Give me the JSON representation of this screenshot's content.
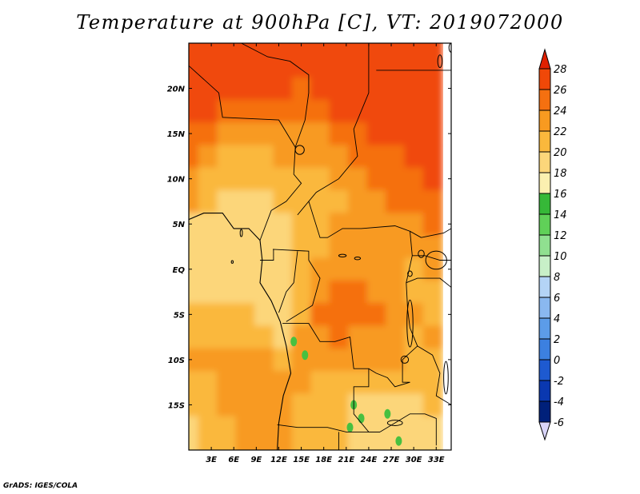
{
  "title": "Temperature at 900hPa [C], VT: 2019072000",
  "credit": "GrADS: IGES/COLA",
  "chart_data": {
    "type": "heatmap",
    "title": "Temperature at 900hPa [C], VT: 2019072000",
    "variable": "Temperature at 900hPa",
    "units": "C",
    "valid_time": "2019072000",
    "x_axis": {
      "range_deg_east": [
        0,
        35
      ],
      "ticks": [
        3,
        6,
        9,
        12,
        15,
        18,
        21,
        24,
        27,
        30,
        33
      ],
      "tick_labels": [
        "3E",
        "6E",
        "9E",
        "12E",
        "15E",
        "18E",
        "21E",
        "24E",
        "27E",
        "30E",
        "33E"
      ]
    },
    "y_axis": {
      "range_deg_north": [
        -20,
        25
      ],
      "ticks": [
        20,
        15,
        10,
        5,
        0,
        -5,
        -10,
        -15
      ],
      "tick_labels": [
        "20N",
        "15N",
        "10N",
        "5N",
        "EQ",
        "5S",
        "10S",
        "15S"
      ]
    },
    "colorbar": {
      "levels": [
        28,
        26,
        24,
        22,
        20,
        18,
        16,
        14,
        12,
        10,
        8,
        6,
        4,
        2,
        0,
        -2,
        -4,
        -6
      ],
      "labels": [
        "28",
        "26",
        "24",
        "22",
        "20",
        "18",
        "16",
        "14",
        "12",
        "10",
        "8",
        "6",
        "4",
        "2",
        "0",
        "-2",
        "-4",
        "-6"
      ],
      "colors_top_to_bottom": [
        "#e02000",
        "#f04808",
        "#f57010",
        "#f89a20",
        "#fab83c",
        "#fcd67a",
        "#fbf0b0",
        "#36b838",
        "#60d058",
        "#90e090",
        "#c8f0c8",
        "#b4d4f6",
        "#8ab8f0",
        "#5c9ce8",
        "#3c80e0",
        "#1e5ad0",
        "#0a38b0",
        "#00207a",
        "#d8d4f8"
      ]
    },
    "fields": {
      "grid_step_deg": 2.5,
      "lat_rows_north_to_south": [
        25,
        22.5,
        20,
        17.5,
        15,
        12.5,
        10,
        7.5,
        5,
        2.5,
        0,
        -2.5,
        -5,
        -7.5,
        -10,
        -12.5,
        -15,
        -17.5,
        -20
      ],
      "lon_cols_west_to_east": [
        0,
        2.5,
        5,
        7.5,
        10,
        12.5,
        15,
        17.5,
        20,
        22.5,
        25,
        27.5,
        30,
        32.5
      ],
      "temperature_c": [
        [
          27,
          27,
          27,
          27,
          27,
          27,
          26,
          27,
          27,
          27,
          27,
          27,
          27,
          27
        ],
        [
          27,
          27,
          27,
          27,
          27,
          27,
          26,
          26,
          27,
          27,
          27,
          27,
          27,
          27
        ],
        [
          27,
          27,
          27,
          27,
          26,
          26,
          25,
          26,
          27,
          27,
          27,
          27,
          27,
          27
        ],
        [
          27,
          26,
          25,
          25,
          24,
          25,
          24,
          25,
          26,
          26,
          27,
          27,
          27,
          27
        ],
        [
          25,
          24,
          23,
          23,
          22,
          23,
          23,
          23,
          24,
          25,
          26,
          26,
          26,
          26
        ],
        [
          24,
          22,
          21,
          21,
          21,
          22,
          22,
          22,
          23,
          24,
          25,
          25,
          26,
          26
        ],
        [
          23,
          21,
          20,
          20,
          20,
          21,
          21,
          21,
          22,
          23,
          24,
          24,
          25,
          26
        ],
        [
          22,
          21,
          19,
          19,
          19,
          20,
          20,
          20,
          21,
          22,
          23,
          24,
          25,
          25
        ],
        [
          19,
          19,
          19,
          18,
          19,
          19,
          20,
          21,
          22,
          22,
          23,
          23,
          23,
          24
        ],
        [
          19,
          19,
          19,
          19,
          18,
          19,
          20,
          21,
          22,
          22,
          22,
          22,
          22,
          23
        ],
        [
          18,
          19,
          19,
          19,
          18,
          19,
          21,
          22,
          22,
          22,
          22,
          22,
          21,
          22
        ],
        [
          19,
          18,
          18,
          18,
          19,
          19,
          21,
          23,
          24,
          24,
          23,
          22,
          21,
          21
        ],
        [
          20,
          20,
          20,
          20,
          19,
          18,
          21,
          24,
          25,
          25,
          24,
          23,
          22,
          21
        ],
        [
          21,
          21,
          21,
          21,
          21,
          19,
          22,
          23,
          24,
          23,
          22,
          22,
          21,
          22
        ],
        [
          22,
          22,
          22,
          22,
          22,
          21,
          22,
          22,
          22,
          22,
          22,
          22,
          21,
          21
        ],
        [
          21,
          21,
          22,
          23,
          23,
          22,
          22,
          21,
          21,
          21,
          20,
          20,
          20,
          21
        ],
        [
          20,
          21,
          22,
          23,
          23,
          22,
          21,
          21,
          20,
          19,
          19,
          18,
          19,
          20
        ],
        [
          19,
          20,
          21,
          22,
          23,
          22,
          21,
          21,
          20,
          18,
          18,
          18,
          18,
          19
        ],
        [
          19,
          20,
          21,
          22,
          22,
          22,
          21,
          21,
          20,
          19,
          19,
          19,
          19,
          19
        ]
      ],
      "green_patches_below_16c": [
        {
          "lon": 14.0,
          "lat": -8.0
        },
        {
          "lon": 15.5,
          "lat": -9.5
        },
        {
          "lon": 22.0,
          "lat": -15.0
        },
        {
          "lon": 23.0,
          "lat": -16.5
        },
        {
          "lon": 26.5,
          "lat": -16.0
        },
        {
          "lon": 21.5,
          "lat": -17.5
        },
        {
          "lon": 28.0,
          "lat": -19.0
        }
      ]
    },
    "boundaries": {
      "coastline": [
        [
          0,
          5.5
        ],
        [
          2.0,
          6.2
        ],
        [
          4.5,
          6.2
        ],
        [
          6.0,
          4.5
        ],
        [
          8.0,
          4.5
        ],
        [
          9.5,
          3.2
        ],
        [
          9.8,
          1.0
        ],
        [
          9.5,
          -1.5
        ],
        [
          11.0,
          -3.5
        ],
        [
          12.2,
          -5.8
        ],
        [
          13.0,
          -8.5
        ],
        [
          13.6,
          -11.5
        ],
        [
          12.6,
          -14.0
        ],
        [
          12.0,
          -17.0
        ],
        [
          11.8,
          -20.0
        ]
      ],
      "borders": [
        [
          [
            7.0,
            25.0
          ],
          [
            10.5,
            23.5
          ],
          [
            13.5,
            23.0
          ],
          [
            16.0,
            21.5
          ],
          [
            16.0,
            19.5
          ],
          [
            15.5,
            16.5
          ],
          [
            14.2,
            13.5
          ]
        ],
        [
          [
            0,
            22.5
          ],
          [
            4.0,
            19.5
          ],
          [
            4.5,
            16.8
          ],
          [
            12.0,
            16.5
          ],
          [
            14.2,
            13.5
          ]
        ],
        [
          [
            24.0,
            25.0
          ],
          [
            24.0,
            19.5
          ],
          [
            22.0,
            15.5
          ],
          [
            22.5,
            12.5
          ],
          [
            20.0,
            10.0
          ],
          [
            17.0,
            8.5
          ],
          [
            16.0,
            7.5
          ],
          [
            14.5,
            6.0
          ]
        ],
        [
          [
            25.0,
            22.0
          ],
          [
            35.0,
            22.0
          ]
        ],
        [
          [
            14.2,
            13.5
          ],
          [
            14.0,
            10.5
          ],
          [
            15.0,
            9.5
          ],
          [
            13.0,
            7.5
          ],
          [
            11.0,
            6.5
          ],
          [
            9.5,
            3.2
          ]
        ],
        [
          [
            16.0,
            7.5
          ],
          [
            17.5,
            3.5
          ],
          [
            18.5,
            3.5
          ],
          [
            20.5,
            4.5
          ],
          [
            23.0,
            4.5
          ],
          [
            27.5,
            4.8
          ],
          [
            29.5,
            4.2
          ],
          [
            31.0,
            3.5
          ]
        ],
        [
          [
            11.2,
            2.2
          ],
          [
            16.0,
            2.0
          ],
          [
            16.0,
            1.0
          ]
        ],
        [
          [
            11.3,
            2.2
          ],
          [
            11.3,
            1.0
          ],
          [
            9.5,
            1.0
          ]
        ],
        [
          [
            14.5,
            2.0
          ],
          [
            14.0,
            -1.5
          ],
          [
            13.0,
            -2.5
          ],
          [
            12.0,
            -4.8
          ]
        ],
        [
          [
            16.0,
            1.0
          ],
          [
            17.5,
            -1.0
          ],
          [
            16.5,
            -4.0
          ],
          [
            13.0,
            -5.8
          ]
        ],
        [
          [
            12.5,
            -6.0
          ],
          [
            16.0,
            -6.0
          ],
          [
            17.5,
            -8.0
          ],
          [
            19.5,
            -8.0
          ],
          [
            21.5,
            -7.5
          ],
          [
            22.0,
            -11.0
          ],
          [
            24.0,
            -11.0
          ],
          [
            24.0,
            -13.0
          ],
          [
            22.0,
            -13.0
          ],
          [
            22.0,
            -16.0
          ],
          [
            24.0,
            -18.0
          ],
          [
            25.5,
            -18.0
          ]
        ],
        [
          [
            11.8,
            -17.2
          ],
          [
            14.5,
            -17.5
          ],
          [
            18.5,
            -17.5
          ],
          [
            21.0,
            -18.0
          ],
          [
            23.0,
            -18.0
          ],
          [
            25.5,
            -18.0
          ]
        ],
        [
          [
            20.0,
            -18.0
          ],
          [
            20.0,
            -22.0
          ]
        ],
        [
          [
            29.5,
            4.2
          ],
          [
            29.8,
            1.5
          ],
          [
            29.0,
            -1.5
          ],
          [
            29.2,
            -4.5
          ],
          [
            29.5,
            -6.5
          ],
          [
            30.5,
            -8.5
          ],
          [
            28.5,
            -10.0
          ],
          [
            28.5,
            -12.5
          ],
          [
            29.5,
            -12.5
          ],
          [
            27.5,
            -13.0
          ],
          [
            26.5,
            -12.0
          ],
          [
            25.0,
            -11.5
          ],
          [
            24.0,
            -11.0
          ]
        ],
        [
          [
            31.0,
            3.5
          ],
          [
            34.0,
            4.0
          ],
          [
            35.0,
            4.5
          ]
        ],
        [
          [
            29.8,
            1.5
          ],
          [
            31.5,
            1.5
          ],
          [
            33.5,
            1.0
          ],
          [
            35.0,
            1.0
          ]
        ],
        [
          [
            29.0,
            -1.5
          ],
          [
            30.5,
            -1.0
          ],
          [
            33.5,
            -1.0
          ],
          [
            35.0,
            -2.0
          ]
        ],
        [
          [
            30.5,
            -8.5
          ],
          [
            32.5,
            -9.5
          ],
          [
            33.5,
            -11.5
          ],
          [
            33.0,
            -14.0
          ],
          [
            35.0,
            -15.0
          ]
        ],
        [
          [
            25.5,
            -18.0
          ],
          [
            27.5,
            -17.0
          ],
          [
            29.5,
            -16.0
          ],
          [
            31.5,
            -16.0
          ],
          [
            33.0,
            -16.5
          ],
          [
            33.0,
            -19.5
          ]
        ]
      ],
      "lakes": [
        {
          "lon": 33.0,
          "lat": 1.0,
          "rx": 1.4,
          "ry": 1.0
        },
        {
          "lon": 31.0,
          "lat": 1.7,
          "rx": 0.4,
          "ry": 0.4
        },
        {
          "lon": 29.5,
          "lat": -0.5,
          "rx": 0.3,
          "ry": 0.3
        },
        {
          "lon": 29.5,
          "lat": -6.0,
          "rx": 0.4,
          "ry": 2.6
        },
        {
          "lon": 28.8,
          "lat": -10.0,
          "rx": 0.5,
          "ry": 0.4
        },
        {
          "lon": 34.3,
          "lat": -12.0,
          "rx": 0.3,
          "ry": 1.8
        },
        {
          "lon": 27.5,
          "lat": -17.0,
          "rx": 1.0,
          "ry": 0.3
        },
        {
          "lon": 20.5,
          "lat": 1.5,
          "rx": 0.5,
          "ry": 0.15
        },
        {
          "lon": 22.5,
          "lat": 1.2,
          "rx": 0.4,
          "ry": 0.15
        },
        {
          "lon": 14.8,
          "lat": 13.2,
          "rx": 0.6,
          "ry": 0.5
        },
        {
          "lon": 33.5,
          "lat": 23.0,
          "rx": 0.3,
          "ry": 0.7
        },
        {
          "lon": 35.0,
          "lat": 24.5,
          "rx": 0.3,
          "ry": 0.5
        },
        {
          "lon": 7.0,
          "lat": 4.0,
          "rx": 0.15,
          "ry": 0.4
        },
        {
          "lon": 5.8,
          "lat": 0.8,
          "rx": 0.1,
          "ry": 0.15
        }
      ]
    }
  }
}
